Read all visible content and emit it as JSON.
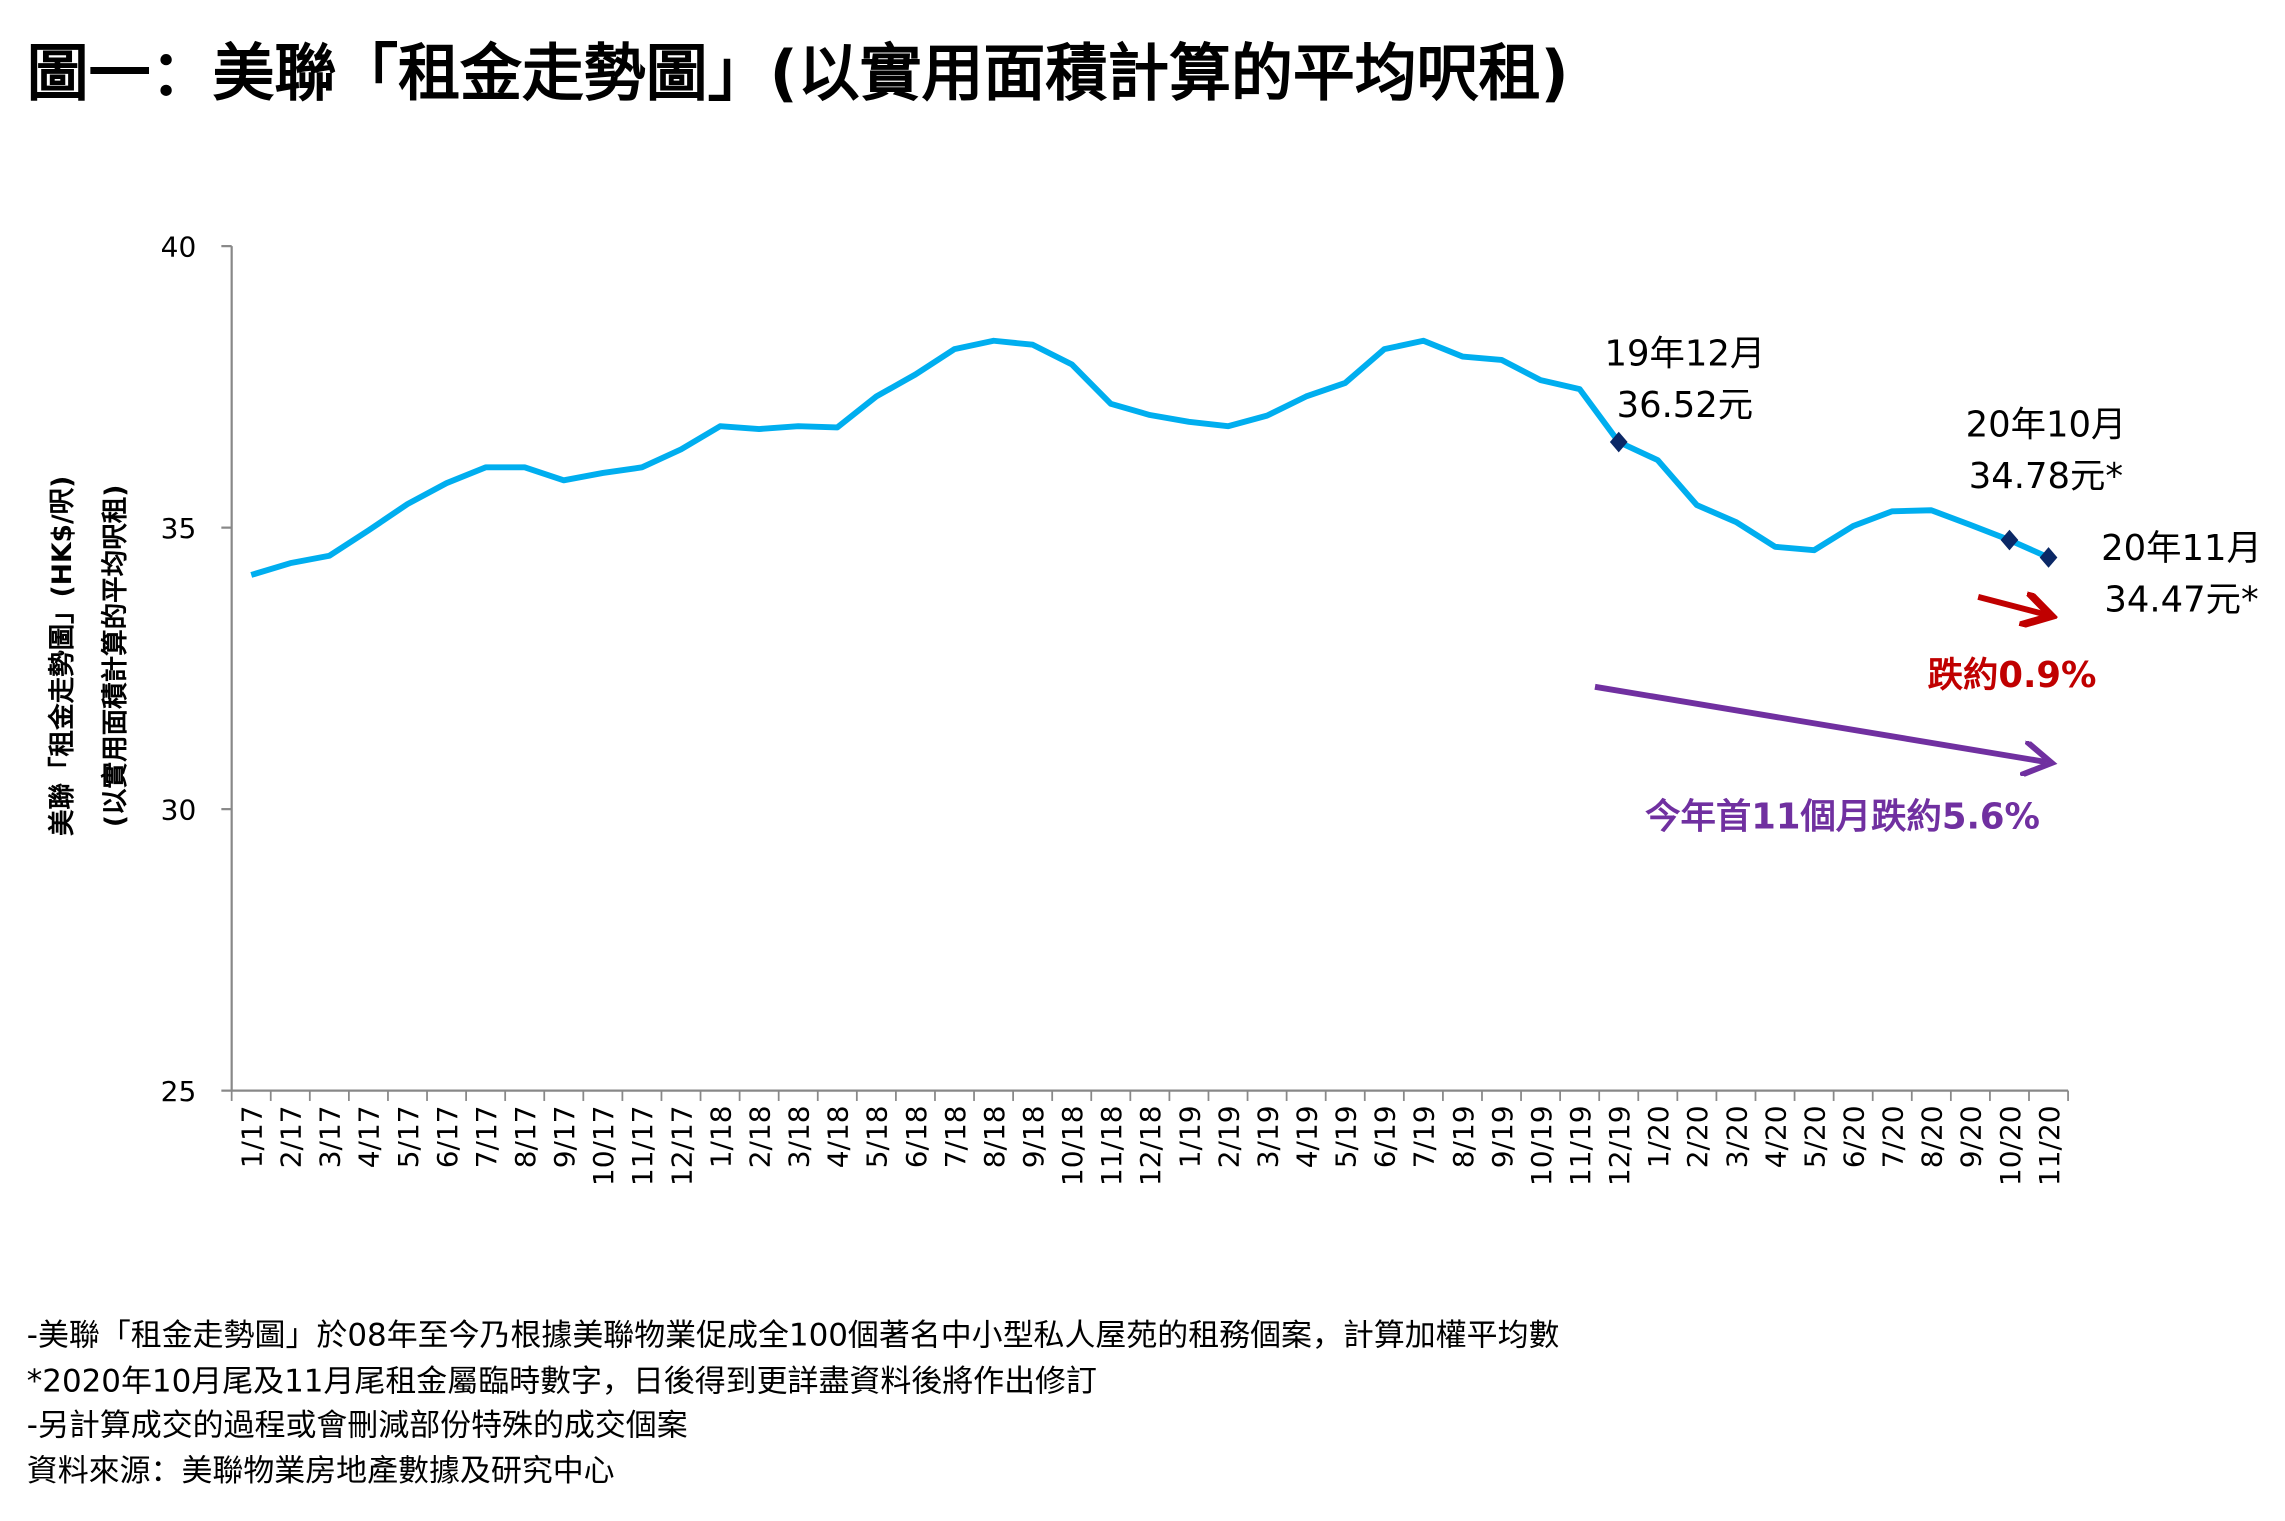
{
  "title": "圖一：美聯「租金走勢圖」(以實用面積計算的平均呎租)",
  "chart_data": {
    "type": "line",
    "title": "圖一：美聯「租金走勢圖」(以實用面積計算的平均呎租)",
    "xlabel": "",
    "ylabel": [
      "美聯「租金走勢圖」(HK$/呎)",
      "(以實用面積計算的平均呎租)"
    ],
    "ylim": [
      25,
      40
    ],
    "yticks": [
      "25",
      "30",
      "35",
      "40"
    ],
    "grid": false,
    "line_color": "#00AEEF",
    "marker_color": "#0B2866",
    "categories": [
      "1/17",
      "2/17",
      "3/17",
      "4/17",
      "5/17",
      "6/17",
      "7/17",
      "8/17",
      "9/17",
      "10/17",
      "11/17",
      "12/17",
      "1/18",
      "2/18",
      "3/18",
      "4/18",
      "5/18",
      "6/18",
      "7/18",
      "8/18",
      "9/18",
      "10/18",
      "11/18",
      "12/18",
      "1/19",
      "2/19",
      "3/19",
      "4/19",
      "5/19",
      "6/19",
      "7/19",
      "8/19",
      "9/19",
      "10/19",
      "11/19",
      "12/19",
      "1/20",
      "2/20",
      "3/20",
      "4/20",
      "5/20",
      "6/20",
      "7/20",
      "8/20",
      "9/20",
      "10/20",
      "11/20"
    ],
    "series": [
      {
        "name": "美聯「租金走勢圖」",
        "values": [
          34.16,
          34.37,
          34.5,
          34.95,
          35.42,
          35.79,
          36.07,
          36.07,
          35.84,
          35.97,
          36.07,
          36.39,
          36.8,
          36.75,
          36.8,
          36.78,
          37.33,
          37.72,
          38.17,
          38.32,
          38.25,
          37.9,
          37.2,
          37.0,
          36.88,
          36.8,
          36.99,
          37.33,
          37.57,
          38.17,
          38.32,
          38.04,
          37.98,
          37.62,
          37.46,
          36.52,
          36.2,
          35.4,
          35.1,
          34.66,
          34.6,
          35.03,
          35.29,
          35.31,
          35.05,
          34.78,
          34.47
        ]
      }
    ],
    "markers": [
      35,
      45,
      46
    ],
    "annotations": {
      "dec19": {
        "line1": "19年12月",
        "line2": "36.52元"
      },
      "oct20": {
        "line1": "20年10月",
        "line2": "34.78元*"
      },
      "nov20": {
        "line1": "20年11月",
        "line2": "34.47元*"
      },
      "mom": {
        "text": "跌約0.9%",
        "color": "#C00000"
      },
      "ytd": {
        "text": "今年首11個月跌約5.6%",
        "color": "#7030A0"
      }
    }
  },
  "footnotes": [
    "-美聯「租金走勢圖」於08年至今乃根據美聯物業促成全100個著名中小型私人屋苑的租務個案，計算加權平均數",
    "*2020年10月尾及11月尾租金屬臨時數字，日後得到更詳盡資料後將作出修訂",
    "-另計算成交的過程或會刪減部份特殊的成交個案",
    "資料來源：美聯物業房地產數據及研究中心"
  ]
}
